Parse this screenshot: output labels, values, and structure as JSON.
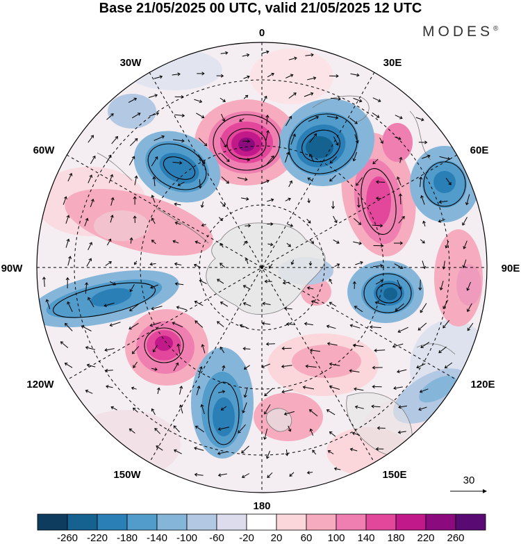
{
  "title": "Base 21/05/2025 00 UTC, valid 21/05/2025 12 UTC",
  "brand": "MODES",
  "brand_mark": "®",
  "map": {
    "projection": "south-polar-stereographic",
    "longitude_labels": [
      "0",
      "30E",
      "60E",
      "90E",
      "120E",
      "150E",
      "180",
      "150W",
      "120W",
      "90W",
      "60W",
      "30W"
    ],
    "vector_reference": "30",
    "colors": {
      "land": "#e6e6e6",
      "coast": "#7a7a7a",
      "grid": "#000000"
    }
  },
  "colorbar": {
    "ticks": [
      "-260",
      "-220",
      "-180",
      "-140",
      "-100",
      "-60",
      "-20",
      "20",
      "60",
      "100",
      "140",
      "180",
      "220",
      "260"
    ],
    "colors": [
      "#0e3c5e",
      "#15618f",
      "#2b7fb7",
      "#529ccc",
      "#85b6d9",
      "#b3c8e3",
      "#dcdcec",
      "#ffffff",
      "#fbd6da",
      "#f6acbe",
      "#ef7fb0",
      "#e3479c",
      "#c2198a",
      "#8b0a7d",
      "#5a0a73"
    ]
  }
}
